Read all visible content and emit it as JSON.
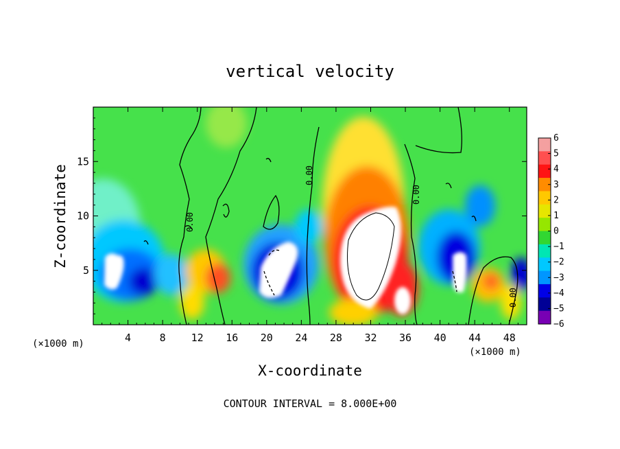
{
  "chart_data": {
    "type": "heatmap",
    "title": "vertical velocity",
    "xlabel": "X-coordinate",
    "ylabel": "Z-coordinate",
    "x_unit_label": "(×1000 m)",
    "x_unit_label_right": "(×1000 m)",
    "footer": "CONTOUR INTERVAL = 8.000E+00",
    "xlim": [
      0,
      50
    ],
    "ylim": [
      0,
      20
    ],
    "x_ticks": [
      4,
      8,
      12,
      16,
      20,
      24,
      28,
      32,
      36,
      40,
      44,
      48
    ],
    "y_ticks": [
      5,
      10,
      15
    ],
    "colorbar": {
      "ticks": [
        "6",
        "5",
        "4",
        "3",
        "2",
        "1",
        "0",
        "−1",
        "−2",
        "−3",
        "−4",
        "−5",
        "−6"
      ],
      "colors": [
        "#f4a0a0",
        "#ff5050",
        "#ff1414",
        "#ff8c00",
        "#ffc800",
        "#e6e600",
        "#96e600",
        "#32d732",
        "#00e6b4",
        "#00c8ff",
        "#0096ff",
        "#0000e6",
        "#000096",
        "#7800b4"
      ]
    },
    "contour_labels": [
      "0.00",
      "0.00",
      "0.00",
      "0.00"
    ],
    "features": [
      {
        "kind": "updraft",
        "x": 32,
        "z": 7,
        "max": ">6"
      },
      {
        "kind": "updraft",
        "x": 35.5,
        "z": 2.5,
        "max": ">6"
      },
      {
        "kind": "updraft",
        "x": 14.5,
        "z": 4,
        "max": 4
      },
      {
        "kind": "updraft",
        "x": 45.5,
        "z": 4,
        "max": 3
      },
      {
        "kind": "downdraft",
        "x": 2.5,
        "z": 5,
        "min": "<-6"
      },
      {
        "kind": "downdraft",
        "x": 21,
        "z": 5.5,
        "min": "<-6"
      },
      {
        "kind": "downdraft",
        "x": 42,
        "z": 5.5,
        "min": "<-6"
      }
    ]
  }
}
